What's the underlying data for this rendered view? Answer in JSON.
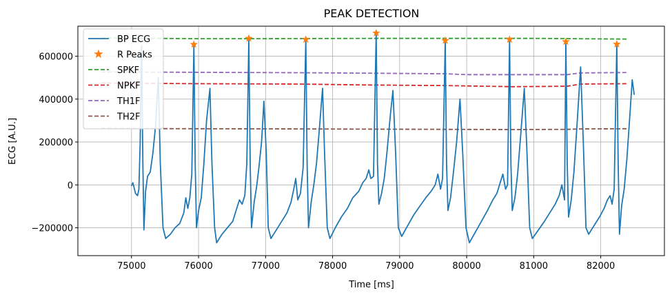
{
  "chart_data": {
    "type": "line",
    "title": "PEAK DETECTION",
    "xlabel": "Time [ms]",
    "ylabel": "ECG [A.U.]",
    "xlim": [
      74200,
      82950
    ],
    "ylim": [
      -330000,
      740000
    ],
    "xticks": [
      75000,
      76000,
      77000,
      78000,
      79000,
      80000,
      81000,
      82000
    ],
    "yticks": [
      -200000,
      0,
      200000,
      400000,
      600000
    ],
    "ytick_labels": [
      "−200000",
      "0",
      "200000",
      "400000",
      "600000"
    ],
    "grid": true,
    "legend_position": "upper-left",
    "colors": {
      "bp_ecg": "#1f77b4",
      "r_peaks": "#ff7f0e",
      "spkf": "#2ca02c",
      "npkf": "#d62728",
      "th1f": "#9467bd",
      "th2f": "#8c564b"
    },
    "series": [
      {
        "name": "BP ECG",
        "style": "solid",
        "ecg_points": [
          [
            75000,
            -5000
          ],
          [
            75020,
            10000
          ],
          [
            75060,
            -40000
          ],
          [
            75090,
            -50000
          ],
          [
            75110,
            -20000
          ],
          [
            75130,
            200000
          ],
          [
            75150,
            650000
          ],
          [
            75170,
            100000
          ],
          [
            75185,
            -210000
          ],
          [
            75210,
            -30000
          ],
          [
            75240,
            40000
          ],
          [
            75280,
            60000
          ],
          [
            75320,
            150000
          ],
          [
            75360,
            280000
          ],
          [
            75400,
            500000
          ],
          [
            75430,
            100000
          ],
          [
            75470,
            -200000
          ],
          [
            75510,
            -250000
          ],
          [
            75580,
            -230000
          ],
          [
            75650,
            -200000
          ],
          [
            75720,
            -180000
          ],
          [
            75780,
            -130000
          ],
          [
            75810,
            -60000
          ],
          [
            75840,
            -110000
          ],
          [
            75870,
            -60000
          ],
          [
            75900,
            50000
          ],
          [
            75930,
            650000
          ],
          [
            75950,
            100000
          ],
          [
            75970,
            -200000
          ],
          [
            76000,
            -120000
          ],
          [
            76040,
            -60000
          ],
          [
            76080,
            100000
          ],
          [
            76120,
            300000
          ],
          [
            76170,
            450000
          ],
          [
            76200,
            100000
          ],
          [
            76240,
            -200000
          ],
          [
            76270,
            -270000
          ],
          [
            76350,
            -230000
          ],
          [
            76430,
            -200000
          ],
          [
            76510,
            -170000
          ],
          [
            76560,
            -120000
          ],
          [
            76610,
            -70000
          ],
          [
            76650,
            -90000
          ],
          [
            76690,
            -50000
          ],
          [
            76720,
            100000
          ],
          [
            76750,
            680000
          ],
          [
            76770,
            100000
          ],
          [
            76790,
            -200000
          ],
          [
            76830,
            -80000
          ],
          [
            76870,
            0
          ],
          [
            76900,
            80000
          ],
          [
            76940,
            200000
          ],
          [
            76975,
            390000
          ],
          [
            77010,
            150000
          ],
          [
            77040,
            -200000
          ],
          [
            77080,
            -250000
          ],
          [
            77160,
            -210000
          ],
          [
            77240,
            -170000
          ],
          [
            77320,
            -130000
          ],
          [
            77380,
            -80000
          ],
          [
            77420,
            -20000
          ],
          [
            77450,
            30000
          ],
          [
            77480,
            -70000
          ],
          [
            77520,
            -40000
          ],
          [
            77560,
            80000
          ],
          [
            77600,
            680000
          ],
          [
            77620,
            100000
          ],
          [
            77640,
            -200000
          ],
          [
            77680,
            -80000
          ],
          [
            77720,
            0
          ],
          [
            77760,
            100000
          ],
          [
            77800,
            250000
          ],
          [
            77850,
            450000
          ],
          [
            77880,
            150000
          ],
          [
            77920,
            -200000
          ],
          [
            77960,
            -250000
          ],
          [
            78040,
            -200000
          ],
          [
            78130,
            -150000
          ],
          [
            78220,
            -110000
          ],
          [
            78300,
            -60000
          ],
          [
            78390,
            -30000
          ],
          [
            78450,
            10000
          ],
          [
            78500,
            30000
          ],
          [
            78540,
            70000
          ],
          [
            78570,
            30000
          ],
          [
            78610,
            40000
          ],
          [
            78650,
            710000
          ],
          [
            78670,
            100000
          ],
          [
            78690,
            -90000
          ],
          [
            78730,
            -40000
          ],
          [
            78770,
            30000
          ],
          [
            78810,
            150000
          ],
          [
            78860,
            320000
          ],
          [
            78900,
            440000
          ],
          [
            78940,
            150000
          ],
          [
            78980,
            -200000
          ],
          [
            79030,
            -240000
          ],
          [
            79120,
            -190000
          ],
          [
            79210,
            -140000
          ],
          [
            79300,
            -100000
          ],
          [
            79390,
            -60000
          ],
          [
            79470,
            -30000
          ],
          [
            79530,
            0
          ],
          [
            79570,
            50000
          ],
          [
            79610,
            -20000
          ],
          [
            79640,
            30000
          ],
          [
            79680,
            670000
          ],
          [
            79700,
            100000
          ],
          [
            79720,
            -120000
          ],
          [
            79760,
            -60000
          ],
          [
            79800,
            50000
          ],
          [
            79850,
            200000
          ],
          [
            79900,
            400000
          ],
          [
            79940,
            150000
          ],
          [
            79990,
            -200000
          ],
          [
            80040,
            -270000
          ],
          [
            80130,
            -220000
          ],
          [
            80220,
            -170000
          ],
          [
            80310,
            -120000
          ],
          [
            80390,
            -70000
          ],
          [
            80450,
            -40000
          ],
          [
            80500,
            10000
          ],
          [
            80540,
            50000
          ],
          [
            80580,
            -20000
          ],
          [
            80610,
            0
          ],
          [
            80640,
            680000
          ],
          [
            80660,
            100000
          ],
          [
            80680,
            -120000
          ],
          [
            80720,
            -60000
          ],
          [
            80760,
            50000
          ],
          [
            80810,
            250000
          ],
          [
            80860,
            450000
          ],
          [
            80900,
            150000
          ],
          [
            80940,
            -200000
          ],
          [
            80980,
            -250000
          ],
          [
            81070,
            -210000
          ],
          [
            81160,
            -170000
          ],
          [
            81240,
            -130000
          ],
          [
            81320,
            -90000
          ],
          [
            81380,
            -50000
          ],
          [
            81420,
            0
          ],
          [
            81460,
            -70000
          ],
          [
            81480,
            670000
          ],
          [
            81500,
            100000
          ],
          [
            81520,
            -150000
          ],
          [
            81560,
            -70000
          ],
          [
            81600,
            60000
          ],
          [
            81650,
            300000
          ],
          [
            81700,
            550000
          ],
          [
            81740,
            200000
          ],
          [
            81780,
            -200000
          ],
          [
            81820,
            -230000
          ],
          [
            81900,
            -190000
          ],
          [
            81980,
            -150000
          ],
          [
            82050,
            -110000
          ],
          [
            82100,
            -70000
          ],
          [
            82140,
            -50000
          ],
          [
            82170,
            -90000
          ],
          [
            82200,
            -20000
          ],
          [
            82240,
            660000
          ],
          [
            82260,
            100000
          ],
          [
            82280,
            -230000
          ],
          [
            82310,
            -100000
          ],
          [
            82350,
            -20000
          ],
          [
            82390,
            120000
          ],
          [
            82440,
            350000
          ],
          [
            82470,
            490000
          ],
          [
            82500,
            420000
          ]
        ]
      },
      {
        "name": "R Peaks",
        "style": "star",
        "points": [
          [
            75930,
            655000
          ],
          [
            76750,
            683000
          ],
          [
            77600,
            678000
          ],
          [
            78650,
            708000
          ],
          [
            79680,
            673000
          ],
          [
            80640,
            678000
          ],
          [
            81480,
            668000
          ],
          [
            82240,
            656000
          ]
        ]
      },
      {
        "name": "SPKF",
        "style": "dashed",
        "points": [
          [
            74550,
            685000
          ],
          [
            75900,
            682000
          ],
          [
            77000,
            682000
          ],
          [
            78600,
            683000
          ],
          [
            79500,
            683000
          ],
          [
            81000,
            683000
          ],
          [
            82400,
            680000
          ]
        ]
      },
      {
        "name": "NPKF",
        "style": "dashed",
        "points": [
          [
            74550,
            475000
          ],
          [
            75900,
            472000
          ],
          [
            77500,
            470000
          ],
          [
            78500,
            466000
          ],
          [
            79700,
            463000
          ],
          [
            80700,
            458000
          ],
          [
            81500,
            460000
          ],
          [
            81700,
            470000
          ],
          [
            82400,
            472000
          ]
        ]
      },
      {
        "name": "TH1F",
        "style": "dashed",
        "points": [
          [
            74550,
            527000
          ],
          [
            75900,
            525000
          ],
          [
            77500,
            523000
          ],
          [
            78500,
            521000
          ],
          [
            79700,
            518000
          ],
          [
            80000,
            514000
          ],
          [
            81500,
            514000
          ],
          [
            81700,
            522000
          ],
          [
            82400,
            524000
          ]
        ]
      },
      {
        "name": "TH2F",
        "style": "dashed",
        "points": [
          [
            74550,
            263000
          ],
          [
            75900,
            262000
          ],
          [
            77500,
            261000
          ],
          [
            78500,
            260000
          ],
          [
            79700,
            259000
          ],
          [
            80700,
            258000
          ],
          [
            81500,
            259000
          ],
          [
            81700,
            261000
          ],
          [
            82400,
            262000
          ]
        ]
      }
    ]
  }
}
